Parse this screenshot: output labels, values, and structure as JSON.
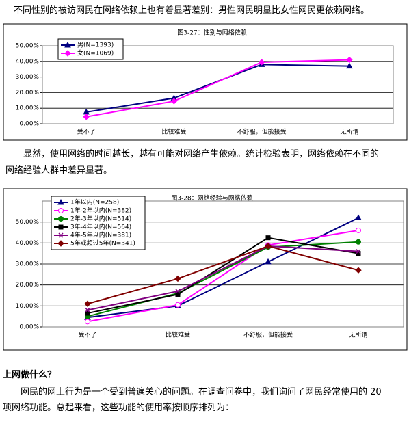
{
  "paragraphs": [
    "不同性别的被访网民在网络依赖上也有着显著差别：男性网民明显比女性网民更依赖网络。",
    "显然，使用网络的时间越长，越有可能对网络产生依赖。统计检验表明，网络依赖在不同的",
    "网络经验人群中差异显著。"
  ],
  "heading": "上网做什么？",
  "paragraphs2": [
    "网民的网上行为是一个受到普遍关心的问题。在调查问卷中，我们询问了网民经常使用的 20",
    "项网络功能。总起来看，这些功能的使用率按顺序排列为："
  ],
  "chart_data": [
    {
      "type": "line",
      "title": "图3-27：性别与网络依赖",
      "categories": [
        "受不了",
        "比较难受",
        "不舒服，但能接受",
        "无所谓"
      ],
      "series": [
        {
          "name": "男(N=1393)",
          "color": "#000080",
          "marker": "triangle",
          "values": [
            7.5,
            16.5,
            38,
            37
          ]
        },
        {
          "name": "女(N=1069)",
          "color": "#ff00ff",
          "marker": "diamond",
          "values": [
            4.5,
            14.5,
            39.5,
            41
          ]
        }
      ],
      "ylim": [
        0,
        50
      ],
      "yticks": [
        {
          "value": 0,
          "label": "0.00%"
        },
        {
          "value": 10,
          "label": "10.00%"
        },
        {
          "value": 20,
          "label": "20.00%"
        },
        {
          "value": 30,
          "label": "30.00%"
        },
        {
          "value": 40,
          "label": "40.00%"
        },
        {
          "value": 50,
          "label": "50.00%"
        }
      ],
      "grid": true,
      "legend": "upper left"
    },
    {
      "type": "line",
      "title": "图3-28：网络经验与网络依赖",
      "categories": [
        "受不了",
        "比较难受",
        "不舒服，但能接受",
        "无所谓"
      ],
      "series": [
        {
          "name": "1年以内(N=258)",
          "color": "#000080",
          "marker": "triangle",
          "values": [
            4.5,
            10,
            31,
            52
          ]
        },
        {
          "name": "1年-2年以内(N=382)",
          "color": "#ff00ff",
          "marker": "open-circle",
          "values": [
            2.5,
            10.5,
            39,
            46
          ]
        },
        {
          "name": "2年-3年以内(N=514)",
          "color": "#008000",
          "marker": "circle",
          "values": [
            5,
            16,
            38,
            40.5
          ]
        },
        {
          "name": "3年-4年以内(N=564)",
          "color": "#000000",
          "marker": "square",
          "values": [
            6.5,
            15.5,
            42.5,
            35
          ]
        },
        {
          "name": "4年-5年以内(N=381)",
          "color": "#800080",
          "marker": "cross",
          "values": [
            8,
            17,
            38.5,
            36
          ]
        },
        {
          "name": "5年或超过5年(N=341)",
          "color": "#800000",
          "marker": "diamond",
          "values": [
            11,
            23,
            38.5,
            27
          ]
        }
      ],
      "ylim": [
        0,
        60
      ],
      "yticks": [
        {
          "value": 0,
          "label": "0.00%"
        },
        {
          "value": 10,
          "label": "10.00%"
        },
        {
          "value": 20,
          "label": "20.00%"
        },
        {
          "value": 30,
          "label": "30.00%"
        },
        {
          "value": 40,
          "label": "40.00%"
        },
        {
          "value": 50,
          "label": "50.00%"
        }
      ],
      "grid": true,
      "legend": "upper left"
    }
  ]
}
